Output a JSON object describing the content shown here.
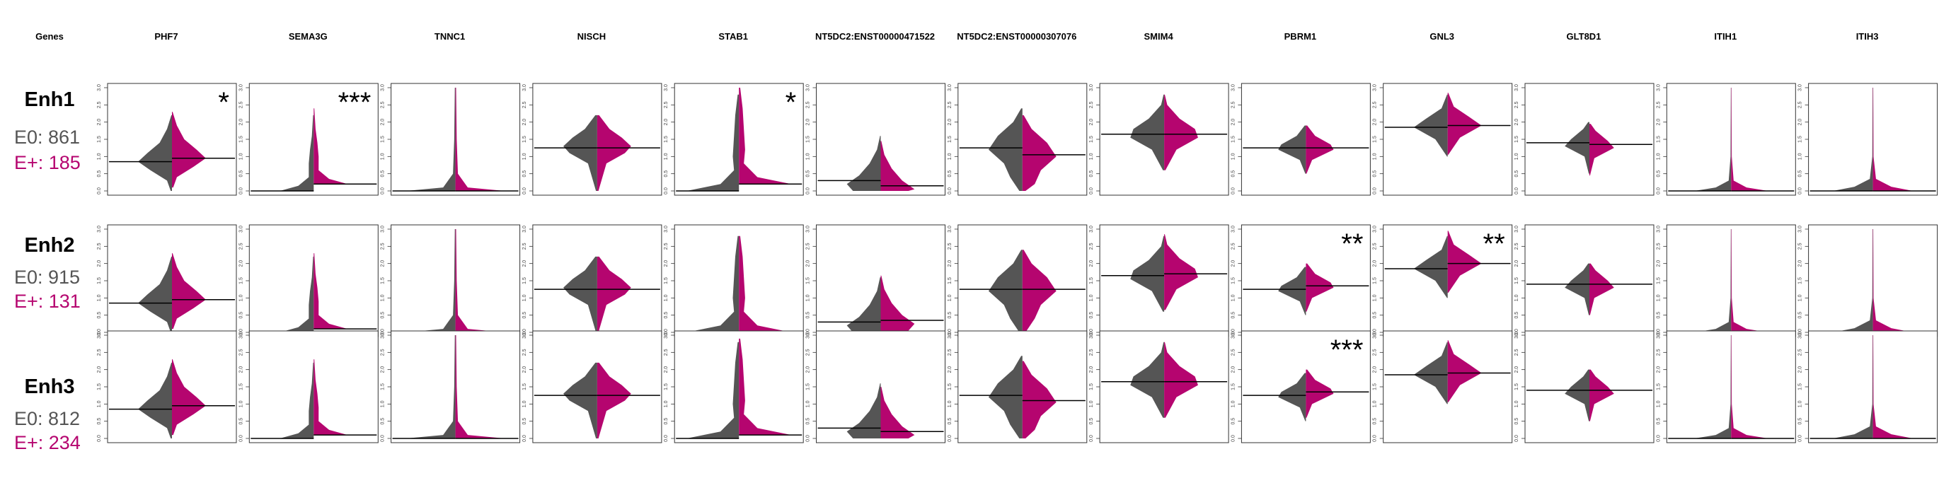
{
  "figure": {
    "corner_label": "Genes",
    "colors": {
      "e0": "#555555",
      "eplus": "#B5056F",
      "median": "#000000"
    }
  },
  "chart_data": {
    "type": "split-violin",
    "genes": [
      "PHF7",
      "SEMA3G",
      "TNNC1",
      "NISCH",
      "STAB1",
      "NT5DC2:ENST00000471522",
      "NT5DC2:ENST00000307076",
      "SMIM4",
      "PBRM1",
      "GNL3",
      "GLT8D1",
      "ITIH1",
      "ITIH3"
    ],
    "ylim": [
      0,
      3
    ],
    "yticks": [
      "0.0",
      "0.5",
      "1.0",
      "1.5",
      "2.0",
      "2.5",
      "3.0"
    ],
    "groups": [
      "E0",
      "E+"
    ],
    "rows": [
      {
        "name": "Enh1",
        "e0_label": "E0: 861",
        "ep_label": "E+: 185",
        "medians_e0": [
          0.85,
          0.0,
          0.0,
          1.25,
          0.0,
          0.3,
          1.25,
          1.65,
          1.25,
          1.85,
          1.4,
          0.0,
          0.0
        ],
        "medians_ep": [
          0.95,
          0.2,
          0.0,
          1.25,
          0.2,
          0.15,
          1.05,
          1.65,
          1.25,
          1.9,
          1.35,
          0.0,
          0.0
        ],
        "significance": [
          "*",
          "***",
          "",
          "",
          "*",
          "",
          "",
          "",
          "",
          "",
          "",
          "",
          ""
        ]
      },
      {
        "name": "Enh2",
        "e0_label": "E0: 915",
        "ep_label": "E+: 131",
        "medians_e0": [
          0.85,
          0.0,
          0.0,
          1.25,
          0.0,
          0.3,
          1.25,
          1.65,
          1.25,
          1.85,
          1.4,
          0.0,
          0.0
        ],
        "medians_ep": [
          0.95,
          0.1,
          0.0,
          1.25,
          0.0,
          0.35,
          1.25,
          1.7,
          1.35,
          2.0,
          1.4,
          0.0,
          0.0
        ],
        "significance": [
          "",
          "",
          "",
          "",
          "",
          "",
          "",
          "",
          "**",
          "**",
          "",
          "",
          ""
        ]
      },
      {
        "name": "Enh3",
        "e0_label": "E0: 812",
        "ep_label": "E+: 234",
        "medians_e0": [
          0.85,
          0.0,
          0.0,
          1.25,
          0.0,
          0.3,
          1.25,
          1.65,
          1.25,
          1.85,
          1.4,
          0.0,
          0.0
        ],
        "medians_ep": [
          0.95,
          0.1,
          0.0,
          1.25,
          0.1,
          0.2,
          1.1,
          1.65,
          1.35,
          1.9,
          1.4,
          0.0,
          0.0
        ],
        "significance": [
          "",
          "",
          "",
          "",
          "",
          "",
          "",
          "",
          "***",
          "",
          "",
          "",
          ""
        ]
      }
    ]
  }
}
